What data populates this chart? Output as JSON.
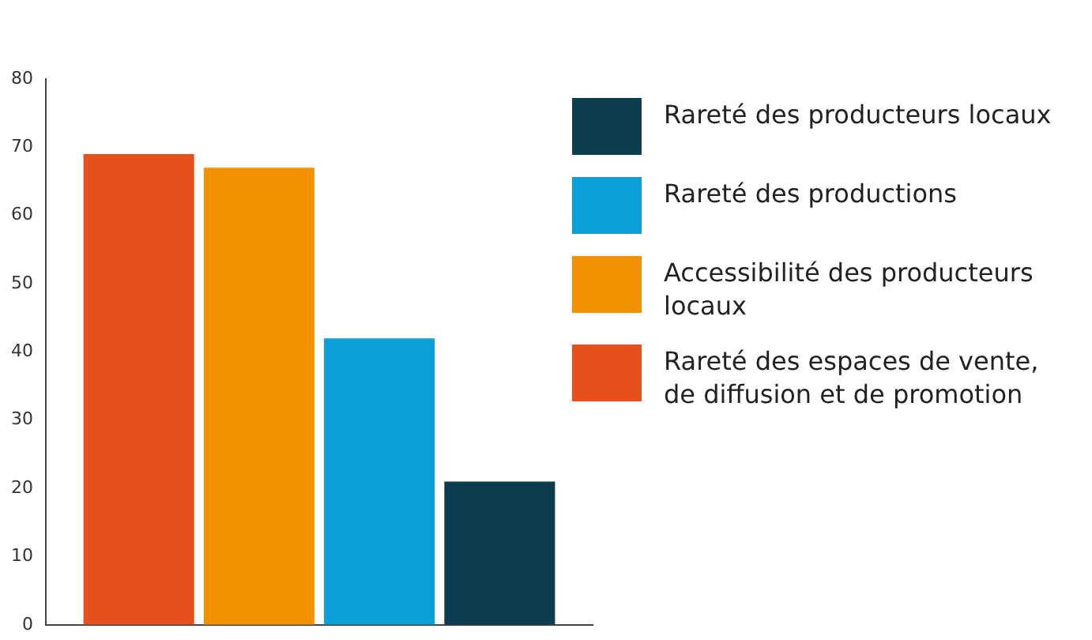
{
  "chart_data": {
    "type": "bar",
    "categories": [
      null
    ],
    "series": [
      {
        "name": "Rareté des espaces de vente, de diffusion et de promotion",
        "color": "#e5501e",
        "values": [
          69
        ]
      },
      {
        "name": "Accessibilité des producteurs locaux",
        "color": "#f39200",
        "values": [
          67
        ]
      },
      {
        "name": "Rareté des productions",
        "color": "#0d9fd8",
        "values": [
          42
        ]
      },
      {
        "name": "Rareté des producteurs locaux",
        "color": "#0b3d4f",
        "values": [
          21
        ]
      }
    ],
    "ylim": [
      0,
      80
    ],
    "yticks": [
      0,
      10,
      20,
      30,
      40,
      50,
      60,
      70,
      80
    ],
    "grid": false,
    "legend": "right"
  }
}
